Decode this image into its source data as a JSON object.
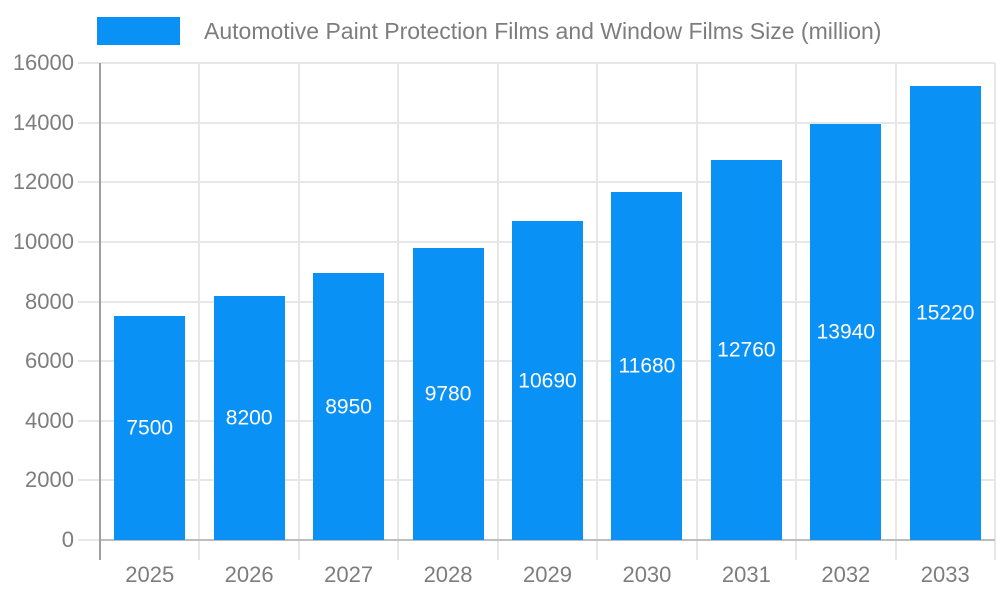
{
  "legend": {
    "label": "Automotive Paint Protection Films and Window Films Size (million)"
  },
  "chart_data": {
    "type": "bar",
    "title": "Automotive Paint Protection Films and Window Films Size (million)",
    "categories": [
      "2025",
      "2026",
      "2027",
      "2028",
      "2029",
      "2030",
      "2031",
      "2032",
      "2033"
    ],
    "values": [
      7500,
      8200,
      8950,
      9780,
      10690,
      11680,
      12760,
      13940,
      15220
    ],
    "series": [
      {
        "name": "Automotive Paint Protection Films and Window Films Size (million)",
        "values": [
          7500,
          8200,
          8950,
          9780,
          10690,
          11680,
          12760,
          13940,
          15220
        ]
      }
    ],
    "xlabel": "",
    "ylabel": "",
    "ylim": [
      0,
      16000
    ],
    "yticks": [
      0,
      2000,
      4000,
      6000,
      8000,
      10000,
      12000,
      14000,
      16000
    ],
    "grid": true,
    "legend_position": "top",
    "data_labels": "inside-center-white"
  },
  "colors": {
    "bar": "#0a91f5",
    "grid": "#e7e7e7",
    "y_axis_line": "#a0a0a0",
    "x_axis_line": "#bdbdbd",
    "tick_text": "#7d7d7d",
    "bar_label": "#ffffff",
    "background": "#ffffff"
  }
}
